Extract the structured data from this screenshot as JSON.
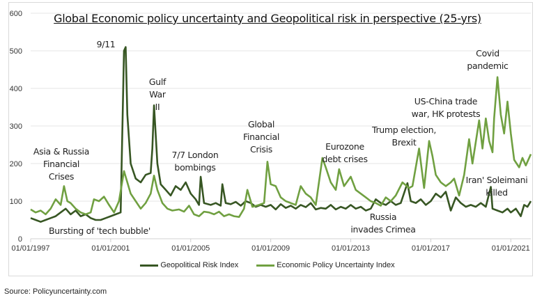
{
  "chart_data": {
    "type": "line",
    "title": "Global Economic policy uncertainty and Geopolitical risk in perspective (25-yrs)",
    "xlabel": "",
    "ylabel": "",
    "ylim": [
      0,
      600
    ],
    "xlim": [
      "1997-01",
      "2022-01"
    ],
    "y_ticks": [
      "0",
      "100",
      "200",
      "300",
      "400",
      "500",
      "600"
    ],
    "x_ticks": [
      "01/01/1997",
      "01/01/2001",
      "01/01/2005",
      "01/01/2009",
      "01/01/2013",
      "01/01/2017",
      "01/01/2021"
    ],
    "grid": "horizontal",
    "legend_placement": "bottom",
    "series": [
      {
        "name": "Geopolitical Risk Index",
        "color": "#375623",
        "points": [
          [
            "1997-01",
            55
          ],
          [
            "1997-04",
            50
          ],
          [
            "1997-07",
            45
          ],
          [
            "1997-10",
            50
          ],
          [
            "1998-01",
            55
          ],
          [
            "1998-04",
            60
          ],
          [
            "1998-07",
            70
          ],
          [
            "1998-10",
            80
          ],
          [
            "1999-01",
            65
          ],
          [
            "1999-04",
            75
          ],
          [
            "1999-07",
            60
          ],
          [
            "1999-10",
            65
          ],
          [
            "2000-01",
            55
          ],
          [
            "2000-04",
            50
          ],
          [
            "2000-07",
            50
          ],
          [
            "2000-10",
            55
          ],
          [
            "2001-01",
            60
          ],
          [
            "2001-04",
            65
          ],
          [
            "2001-07",
            70
          ],
          [
            "2001-09",
            500
          ],
          [
            "2001-10",
            510
          ],
          [
            "2001-11",
            330
          ],
          [
            "2002-01",
            200
          ],
          [
            "2002-04",
            160
          ],
          [
            "2002-07",
            150
          ],
          [
            "2002-10",
            170
          ],
          [
            "2003-01",
            175
          ],
          [
            "2003-02",
            240
          ],
          [
            "2003-03",
            355
          ],
          [
            "2003-05",
            200
          ],
          [
            "2003-07",
            145
          ],
          [
            "2003-10",
            130
          ],
          [
            "2004-01",
            115
          ],
          [
            "2004-04",
            140
          ],
          [
            "2004-07",
            130
          ],
          [
            "2004-10",
            150
          ],
          [
            "2005-01",
            120
          ],
          [
            "2005-04",
            105
          ],
          [
            "2005-06",
            90
          ],
          [
            "2005-07",
            165
          ],
          [
            "2005-09",
            95
          ],
          [
            "2006-01",
            90
          ],
          [
            "2006-04",
            95
          ],
          [
            "2006-07",
            88
          ],
          [
            "2006-08",
            145
          ],
          [
            "2006-10",
            95
          ],
          [
            "2007-01",
            92
          ],
          [
            "2007-04",
            98
          ],
          [
            "2007-07",
            88
          ],
          [
            "2007-10",
            100
          ],
          [
            "2008-01",
            95
          ],
          [
            "2008-04",
            85
          ],
          [
            "2008-07",
            90
          ],
          [
            "2008-10",
            85
          ],
          [
            "2009-01",
            90
          ],
          [
            "2009-04",
            78
          ],
          [
            "2009-07",
            92
          ],
          [
            "2009-10",
            82
          ],
          [
            "2010-01",
            88
          ],
          [
            "2010-04",
            80
          ],
          [
            "2010-07",
            90
          ],
          [
            "2010-10",
            84
          ],
          [
            "2011-01",
            95
          ],
          [
            "2011-04",
            78
          ],
          [
            "2011-07",
            82
          ],
          [
            "2011-10",
            80
          ],
          [
            "2012-01",
            90
          ],
          [
            "2012-04",
            78
          ],
          [
            "2012-07",
            85
          ],
          [
            "2012-10",
            80
          ],
          [
            "2013-01",
            90
          ],
          [
            "2013-04",
            80
          ],
          [
            "2013-07",
            85
          ],
          [
            "2013-10",
            75
          ],
          [
            "2014-01",
            80
          ],
          [
            "2014-04",
            105
          ],
          [
            "2014-07",
            95
          ],
          [
            "2014-10",
            90
          ],
          [
            "2015-01",
            100
          ],
          [
            "2015-04",
            90
          ],
          [
            "2015-07",
            95
          ],
          [
            "2015-11",
            148
          ],
          [
            "2016-01",
            100
          ],
          [
            "2016-04",
            95
          ],
          [
            "2016-07",
            105
          ],
          [
            "2016-10",
            90
          ],
          [
            "2017-01",
            100
          ],
          [
            "2017-04",
            120
          ],
          [
            "2017-07",
            110
          ],
          [
            "2017-10",
            125
          ],
          [
            "2018-01",
            75
          ],
          [
            "2018-04",
            110
          ],
          [
            "2018-07",
            95
          ],
          [
            "2018-10",
            85
          ],
          [
            "2019-01",
            90
          ],
          [
            "2019-04",
            85
          ],
          [
            "2019-07",
            95
          ],
          [
            "2019-10",
            85
          ],
          [
            "2020-01",
            138
          ],
          [
            "2020-02",
            80
          ],
          [
            "2020-05",
            75
          ],
          [
            "2020-08",
            70
          ],
          [
            "2020-11",
            80
          ],
          [
            "2021-01",
            70
          ],
          [
            "2021-04",
            80
          ],
          [
            "2021-07",
            60
          ],
          [
            "2021-09",
            90
          ],
          [
            "2021-11",
            85
          ],
          [
            "2022-01",
            100
          ]
        ]
      },
      {
        "name": "Economic Policy Uncertainty Index",
        "color": "#70a041",
        "points": [
          [
            "1997-01",
            78
          ],
          [
            "1997-04",
            70
          ],
          [
            "1997-07",
            75
          ],
          [
            "1997-10",
            65
          ],
          [
            "1998-01",
            80
          ],
          [
            "1998-04",
            105
          ],
          [
            "1998-07",
            90
          ],
          [
            "1998-09",
            140
          ],
          [
            "1998-11",
            100
          ],
          [
            "1999-01",
            95
          ],
          [
            "1999-04",
            80
          ],
          [
            "1999-07",
            70
          ],
          [
            "1999-10",
            65
          ],
          [
            "2000-01",
            70
          ],
          [
            "2000-03",
            105
          ],
          [
            "2000-06",
            100
          ],
          [
            "2000-09",
            112
          ],
          [
            "2000-12",
            90
          ],
          [
            "2001-03",
            70
          ],
          [
            "2001-06",
            100
          ],
          [
            "2001-09",
            180
          ],
          [
            "2001-11",
            150
          ],
          [
            "2002-01",
            120
          ],
          [
            "2002-04",
            100
          ],
          [
            "2002-07",
            80
          ],
          [
            "2002-10",
            95
          ],
          [
            "2003-01",
            120
          ],
          [
            "2003-03",
            168
          ],
          [
            "2003-05",
            130
          ],
          [
            "2003-08",
            95
          ],
          [
            "2003-11",
            80
          ],
          [
            "2004-02",
            75
          ],
          [
            "2004-06",
            78
          ],
          [
            "2004-09",
            72
          ],
          [
            "2004-12",
            88
          ],
          [
            "2005-03",
            65
          ],
          [
            "2005-06",
            60
          ],
          [
            "2005-09",
            72
          ],
          [
            "2005-12",
            70
          ],
          [
            "2006-03",
            65
          ],
          [
            "2006-06",
            72
          ],
          [
            "2006-09",
            60
          ],
          [
            "2006-12",
            65
          ],
          [
            "2007-03",
            60
          ],
          [
            "2007-06",
            58
          ],
          [
            "2007-09",
            80
          ],
          [
            "2007-11",
            130
          ],
          [
            "2008-02",
            85
          ],
          [
            "2008-06",
            90
          ],
          [
            "2008-09",
            95
          ],
          [
            "2008-11",
            205
          ],
          [
            "2009-01",
            145
          ],
          [
            "2009-04",
            140
          ],
          [
            "2009-07",
            110
          ],
          [
            "2009-10",
            100
          ],
          [
            "2010-01",
            95
          ],
          [
            "2010-04",
            90
          ],
          [
            "2010-07",
            140
          ],
          [
            "2010-10",
            120
          ],
          [
            "2011-01",
            110
          ],
          [
            "2011-04",
            90
          ],
          [
            "2011-08",
            215
          ],
          [
            "2011-10",
            190
          ],
          [
            "2012-01",
            150
          ],
          [
            "2012-04",
            130
          ],
          [
            "2012-06",
            185
          ],
          [
            "2012-09",
            140
          ],
          [
            "2013-01",
            165
          ],
          [
            "2013-04",
            130
          ],
          [
            "2013-07",
            120
          ],
          [
            "2013-10",
            110
          ],
          [
            "2014-01",
            100
          ],
          [
            "2014-04",
            95
          ],
          [
            "2014-07",
            88
          ],
          [
            "2014-10",
            110
          ],
          [
            "2015-01",
            100
          ],
          [
            "2015-04",
            115
          ],
          [
            "2015-08",
            150
          ],
          [
            "2015-12",
            135
          ],
          [
            "2016-02",
            140
          ],
          [
            "2016-06",
            240
          ],
          [
            "2016-09",
            135
          ],
          [
            "2016-12",
            260
          ],
          [
            "2017-02",
            220
          ],
          [
            "2017-04",
            170
          ],
          [
            "2017-07",
            150
          ],
          [
            "2017-10",
            140
          ],
          [
            "2018-01",
            150
          ],
          [
            "2018-03",
            160
          ],
          [
            "2018-06",
            115
          ],
          [
            "2018-09",
            170
          ],
          [
            "2018-12",
            265
          ],
          [
            "2019-02",
            200
          ],
          [
            "2019-06",
            315
          ],
          [
            "2019-08",
            240
          ],
          [
            "2019-10",
            320
          ],
          [
            "2019-12",
            260
          ],
          [
            "2020-02",
            230
          ],
          [
            "2020-03",
            320
          ],
          [
            "2020-05",
            430
          ],
          [
            "2020-07",
            330
          ],
          [
            "2020-09",
            280
          ],
          [
            "2020-11",
            365
          ],
          [
            "2021-01",
            280
          ],
          [
            "2021-03",
            210
          ],
          [
            "2021-06",
            190
          ],
          [
            "2021-08",
            215
          ],
          [
            "2021-10",
            195
          ],
          [
            "2022-01",
            225
          ]
        ]
      }
    ],
    "annotations": [
      [
        "Asia & Russia",
        "Financial",
        "Crises"
      ],
      [
        "Bursting of 'tech bubble'"
      ],
      [
        "9/11"
      ],
      [
        "Gulf",
        "War",
        "II"
      ],
      [
        "7/7 London",
        "bombings"
      ],
      [
        "Global",
        "Financial",
        "Crisis"
      ],
      [
        "Eurozone",
        "debt crises"
      ],
      [
        "Russia",
        "invades Crimea"
      ],
      [
        "Trump election,",
        "Brexit"
      ],
      [
        "US-China trade",
        "war, HK protests"
      ],
      [
        "Covid",
        "pandemic"
      ],
      [
        "Iran' Soleimani",
        "killed"
      ]
    ]
  },
  "source": "Source: Policyuncertainty.com"
}
